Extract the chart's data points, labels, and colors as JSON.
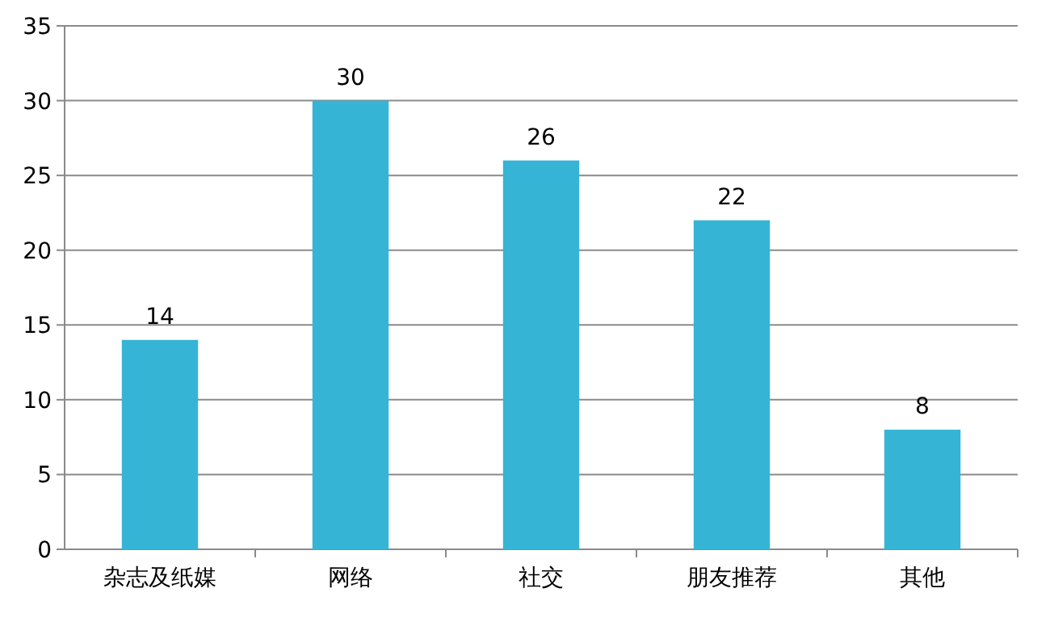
{
  "chart_data": {
    "type": "bar",
    "categories": [
      "杂志及纸媒",
      "网络",
      "社交",
      "朋友推荐",
      "其他"
    ],
    "values": [
      14,
      30,
      26,
      22,
      8
    ],
    "color": "#36b4d6",
    "ylim": [
      0,
      35
    ],
    "yticks": [
      0,
      5,
      10,
      15,
      20,
      25,
      30,
      35
    ],
    "grid": "y",
    "data_labels": true
  }
}
